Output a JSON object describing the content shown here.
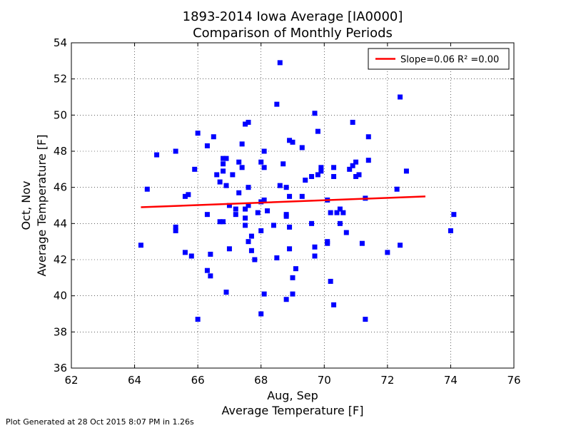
{
  "header": {
    "title_line1": "1893-2014 Iowa Average [IA0000]",
    "title_line2": "Comparison of Monthly Periods"
  },
  "footer": {
    "text": "Plot Generated at 28 Oct 2015 8:07 PM in 1.26s"
  },
  "chart_data": {
    "type": "scatter",
    "title": "1893-2014 Iowa Average [IA0000]\nComparison of Monthly Periods",
    "xlabel": [
      "Aug, Sep",
      "Average Temperature [F]"
    ],
    "ylabel": [
      "Oct, Nov",
      "Average Temperature [F]"
    ],
    "xlim": [
      62,
      76
    ],
    "ylim": [
      36,
      54
    ],
    "xticks": [
      62,
      64,
      66,
      68,
      70,
      72,
      74,
      76
    ],
    "yticks": [
      36,
      38,
      40,
      42,
      44,
      46,
      48,
      50,
      52,
      54
    ],
    "grid": true,
    "legend_position": "top-right",
    "colors": {
      "points": "#0000ff",
      "fit_line": "#ff0000"
    },
    "series": [
      {
        "kind": "line",
        "name": "Slope=0.06 R² =0.00",
        "x": [
          64.2,
          73.2
        ],
        "y": [
          44.9,
          45.5
        ]
      },
      {
        "kind": "scatter",
        "marker": "square",
        "x": [
          64.2,
          64.4,
          64.7,
          65.3,
          65.3,
          65.3,
          65.6,
          65.6,
          65.7,
          65.8,
          65.9,
          66.0,
          66.0,
          66.3,
          66.3,
          66.3,
          66.4,
          66.4,
          66.5,
          66.6,
          66.7,
          66.7,
          66.8,
          66.8,
          66.8,
          66.8,
          66.9,
          66.9,
          66.9,
          66.9,
          67.0,
          67.0,
          67.1,
          67.2,
          67.2,
          67.3,
          67.3,
          67.4,
          67.4,
          67.5,
          67.5,
          67.5,
          67.5,
          67.6,
          67.6,
          67.6,
          67.6,
          67.7,
          67.7,
          67.8,
          67.9,
          68.0,
          68.0,
          68.0,
          68.0,
          68.1,
          68.1,
          68.1,
          68.1,
          68.2,
          68.4,
          68.5,
          68.5,
          68.6,
          68.6,
          68.7,
          68.8,
          68.8,
          68.8,
          68.8,
          68.9,
          68.9,
          68.9,
          68.9,
          69.0,
          69.0,
          69.0,
          69.1,
          69.3,
          69.3,
          69.4,
          69.6,
          69.6,
          69.7,
          69.7,
          69.7,
          69.8,
          69.8,
          69.9,
          69.9,
          70.1,
          70.1,
          70.1,
          70.2,
          70.2,
          70.3,
          70.3,
          70.3,
          70.4,
          70.5,
          70.5,
          70.6,
          70.7,
          70.8,
          70.9,
          70.9,
          71.0,
          71.0,
          71.1,
          71.2,
          71.3,
          71.3,
          71.4,
          71.4,
          72.0,
          72.3,
          72.4,
          72.4,
          72.6,
          74.0,
          74.1
        ],
        "y": [
          42.8,
          45.9,
          47.8,
          48.0,
          43.6,
          43.8,
          45.5,
          42.4,
          45.6,
          42.2,
          47.0,
          49.0,
          38.7,
          48.3,
          44.5,
          41.4,
          42.3,
          41.1,
          48.8,
          46.7,
          46.3,
          44.1,
          47.6,
          47.3,
          46.9,
          44.1,
          47.6,
          46.1,
          40.2,
          40.2,
          45.0,
          42.6,
          46.7,
          44.8,
          44.5,
          47.4,
          45.7,
          48.4,
          47.1,
          49.5,
          44.8,
          44.3,
          43.9,
          49.6,
          46.0,
          45.0,
          43.0,
          43.3,
          42.5,
          42.0,
          44.6,
          45.2,
          47.4,
          43.6,
          39.0,
          48.0,
          47.1,
          45.3,
          40.1,
          44.7,
          43.9,
          50.6,
          42.1,
          52.9,
          46.1,
          47.3,
          44.4,
          44.5,
          39.8,
          46.0,
          48.6,
          45.5,
          43.8,
          42.6,
          48.5,
          41.0,
          40.1,
          41.5,
          48.2,
          45.5,
          46.4,
          44.0,
          46.6,
          50.1,
          42.7,
          42.2,
          49.1,
          46.7,
          46.9,
          47.1,
          45.3,
          42.9,
          43.0,
          44.6,
          40.8,
          47.1,
          46.6,
          39.5,
          44.6,
          44.0,
          44.8,
          44.6,
          43.5,
          47.0,
          49.6,
          47.2,
          46.6,
          47.4,
          46.7,
          42.9,
          45.4,
          38.7,
          47.5,
          48.8,
          42.4,
          45.9,
          42.8,
          51.0,
          46.9,
          43.6,
          44.5
        ]
      }
    ]
  }
}
